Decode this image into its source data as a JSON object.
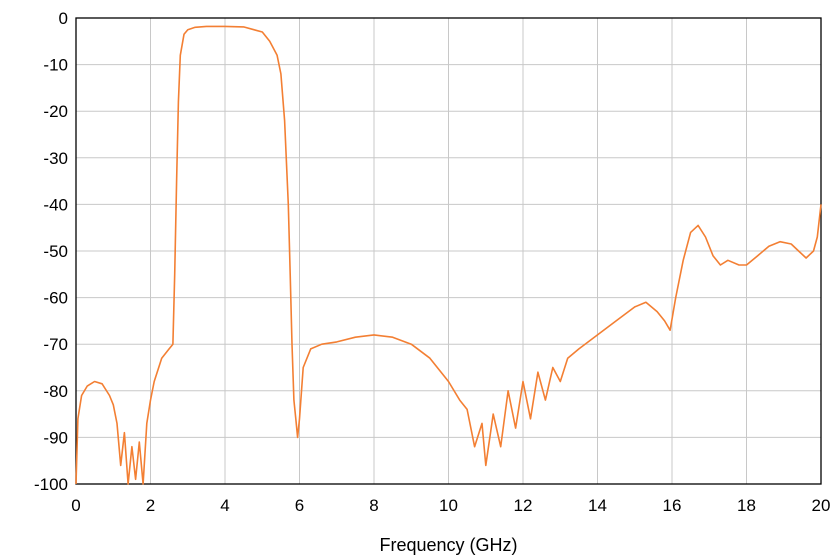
{
  "chart_data": {
    "type": "line",
    "title": "",
    "xlabel": "Frequency (GHz)",
    "ylabel": "",
    "xlim": [
      0,
      20
    ],
    "ylim": [
      -100,
      0
    ],
    "x_ticks": [
      0,
      2,
      4,
      6,
      8,
      10,
      12,
      14,
      16,
      18,
      20
    ],
    "y_ticks": [
      0,
      -10,
      -20,
      -30,
      -40,
      -50,
      -60,
      -70,
      -80,
      -90,
      -100
    ],
    "grid": true,
    "legend": "none",
    "series": [
      {
        "color": "#f37f33",
        "x": [
          0.0,
          0.05,
          0.15,
          0.3,
          0.5,
          0.7,
          0.9,
          1.0,
          1.1,
          1.2,
          1.3,
          1.4,
          1.5,
          1.6,
          1.7,
          1.8,
          1.9,
          2.0,
          2.1,
          2.3,
          2.5,
          2.6,
          2.65,
          2.7,
          2.75,
          2.8,
          2.9,
          3.0,
          3.2,
          3.5,
          4.0,
          4.5,
          5.0,
          5.2,
          5.4,
          5.5,
          5.6,
          5.7,
          5.75,
          5.8,
          5.85,
          5.9,
          5.95,
          6.0,
          6.1,
          6.3,
          6.6,
          7.0,
          7.5,
          8.0,
          8.5,
          9.0,
          9.5,
          10.0,
          10.3,
          10.5,
          10.7,
          10.9,
          11.0,
          11.2,
          11.4,
          11.6,
          11.8,
          12.0,
          12.2,
          12.4,
          12.6,
          12.8,
          13.0,
          13.2,
          13.5,
          14.0,
          14.5,
          15.0,
          15.3,
          15.6,
          15.8,
          15.95,
          16.1,
          16.3,
          16.5,
          16.7,
          16.9,
          17.1,
          17.3,
          17.5,
          17.8,
          18.0,
          18.3,
          18.6,
          18.9,
          19.2,
          19.4,
          19.6,
          19.8,
          19.9,
          20.0
        ],
        "y": [
          -100,
          -86,
          -81,
          -79,
          -78,
          -78.5,
          -81,
          -83,
          -87,
          -96,
          -89,
          -100,
          -92,
          -99,
          -91,
          -100,
          -87,
          -82,
          -78,
          -73,
          -71,
          -70,
          -55,
          -35,
          -18,
          -8,
          -3.5,
          -2.5,
          -2,
          -1.8,
          -1.8,
          -1.9,
          -3,
          -5,
          -8,
          -12,
          -22,
          -40,
          -55,
          -70,
          -82,
          -86,
          -90,
          -86,
          -75,
          -71,
          -70,
          -69.5,
          -68.5,
          -68,
          -68.5,
          -70,
          -73,
          -78,
          -82,
          -84,
          -92,
          -87,
          -96,
          -85,
          -92,
          -80,
          -88,
          -78,
          -86,
          -76,
          -82,
          -75,
          -78,
          -73,
          -71,
          -68,
          -65,
          -62,
          -61,
          -63,
          -65,
          -67,
          -60,
          -52,
          -46,
          -44.5,
          -47,
          -51,
          -53,
          -52,
          -53,
          -53,
          -51,
          -49,
          -48,
          -48.5,
          -50,
          -51.5,
          -50,
          -47,
          -40
        ]
      }
    ]
  }
}
